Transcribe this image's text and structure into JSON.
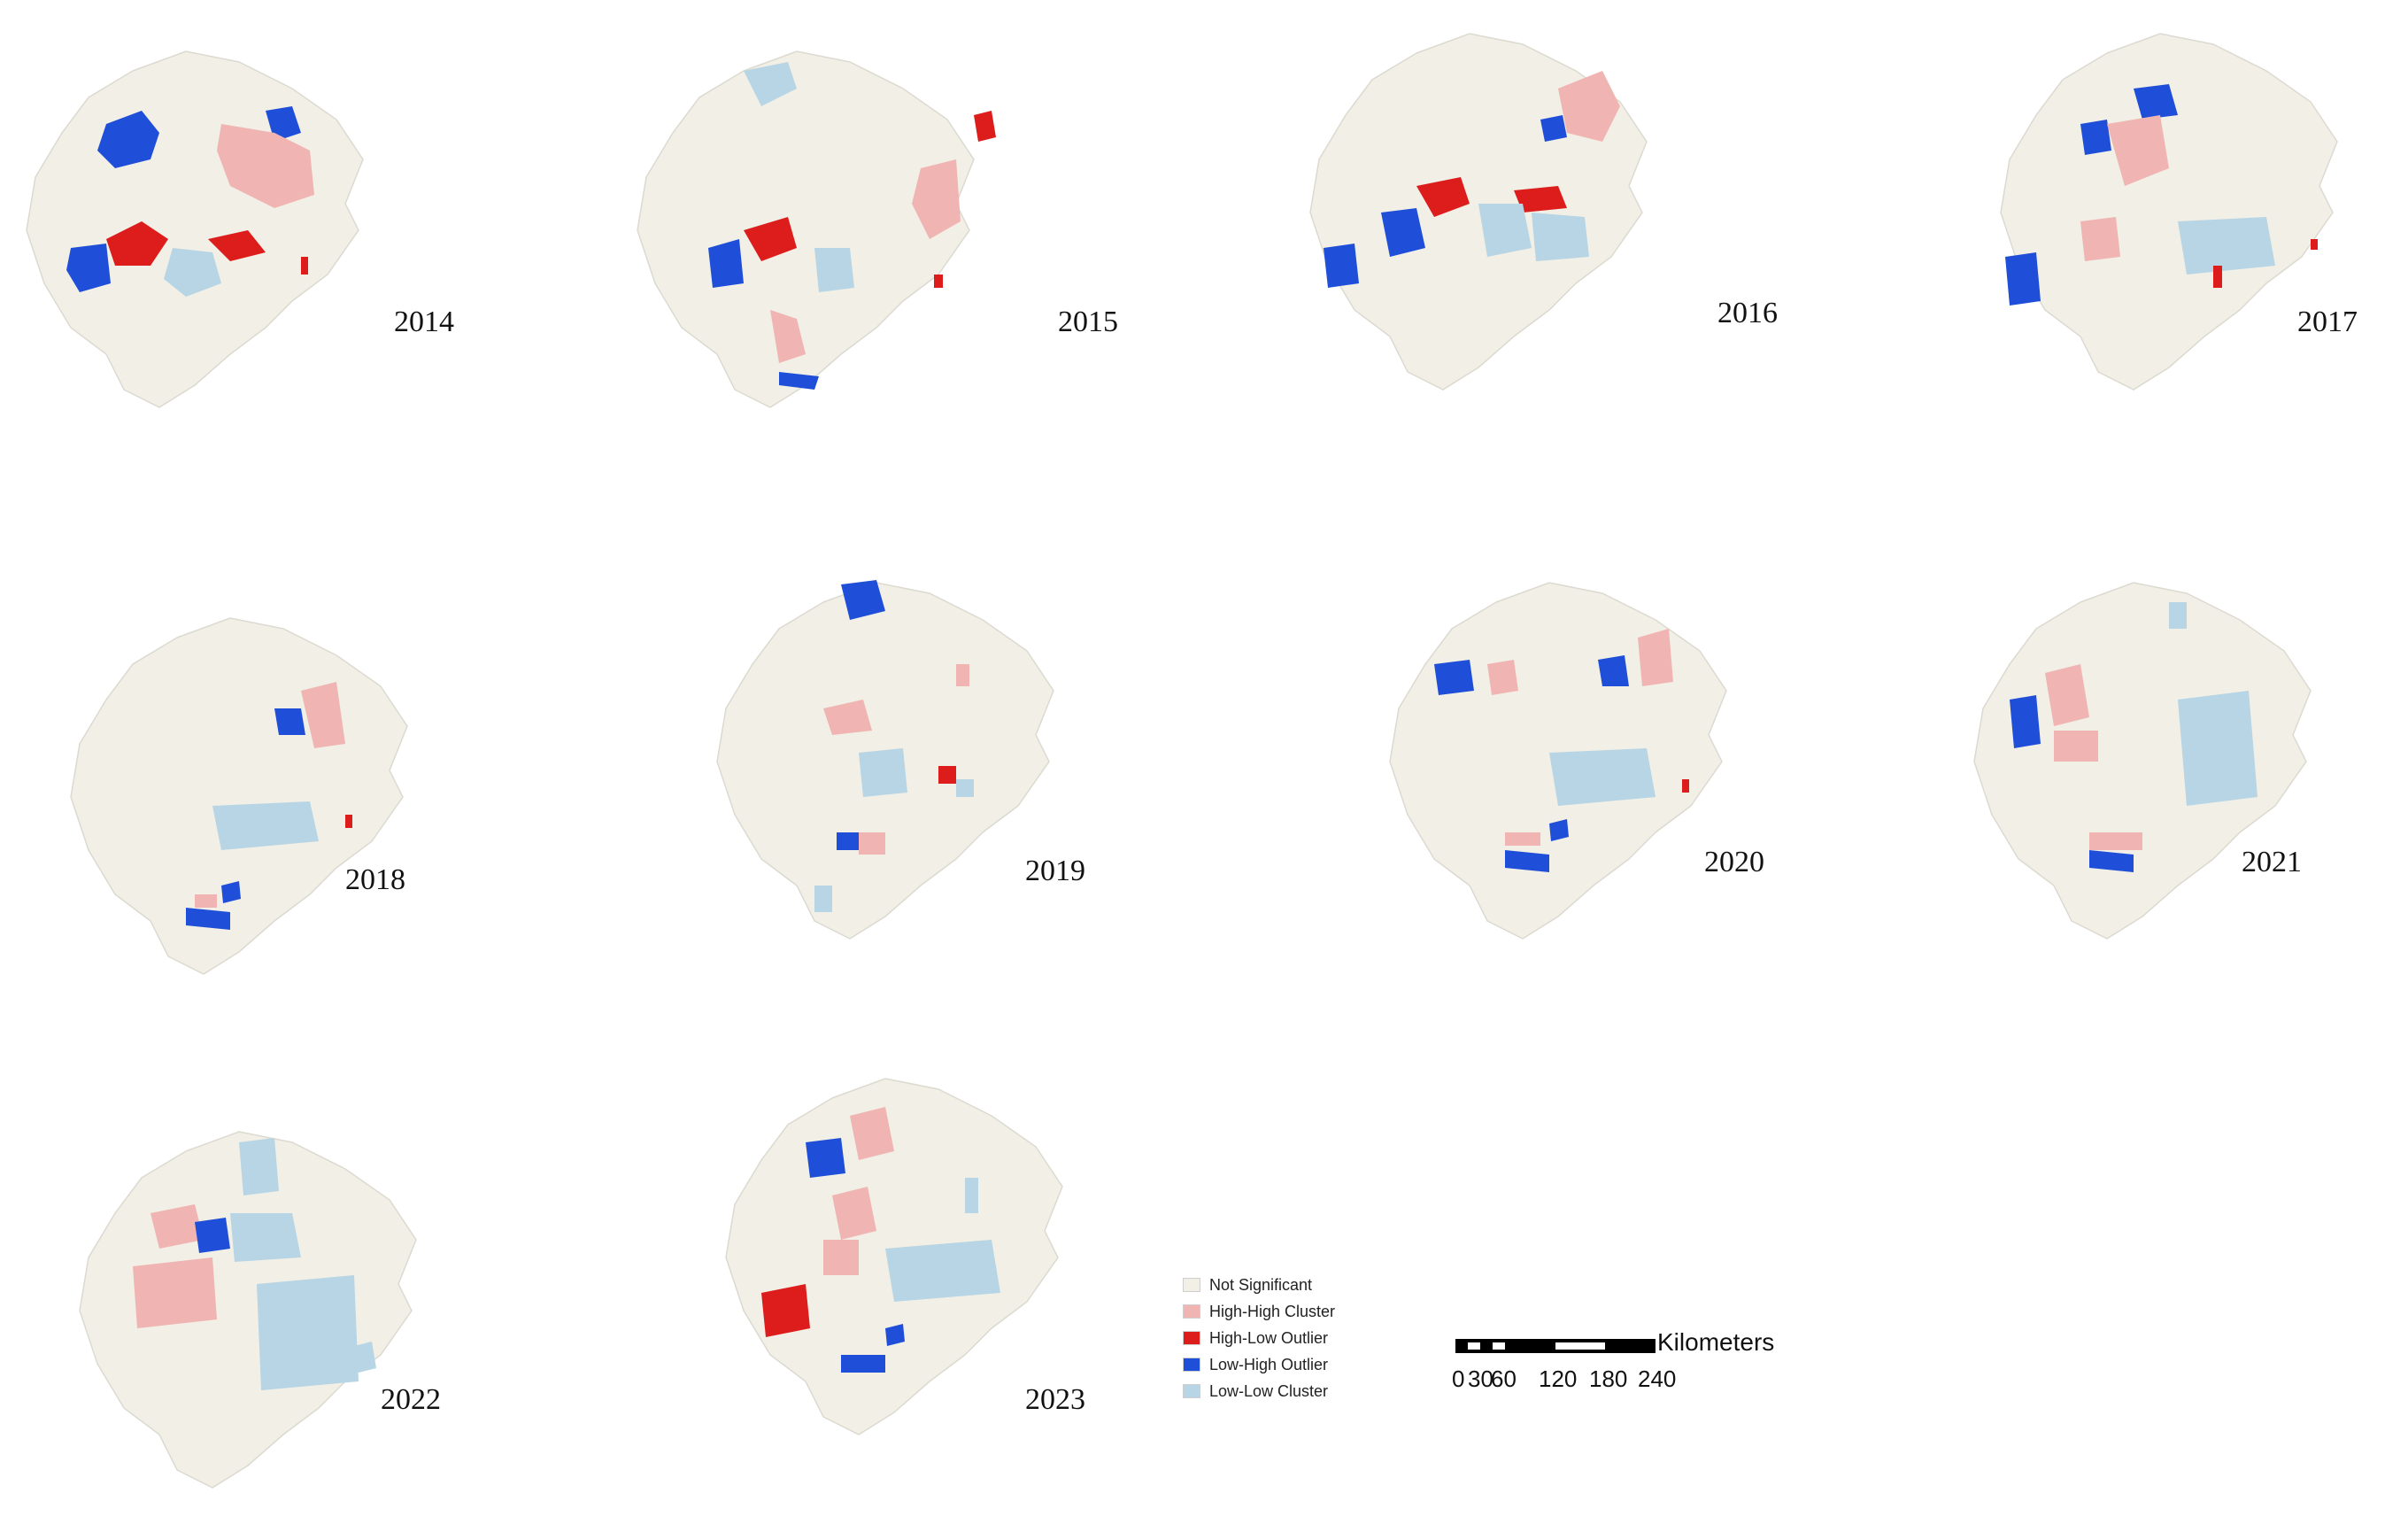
{
  "colors": {
    "not_significant": "#f1efe6",
    "high_high": "#f0b5b2",
    "high_low": "#dd1c1c",
    "low_high": "#1f4fd8",
    "low_low": "#b7d5e4"
  },
  "panels": [
    {
      "year": "2014",
      "key": "p2014"
    },
    {
      "year": "2015",
      "key": "p2015"
    },
    {
      "year": "2016",
      "key": "p2016"
    },
    {
      "year": "2017",
      "key": "p2017"
    },
    {
      "year": "2018",
      "key": "p2018"
    },
    {
      "year": "2019",
      "key": "p2019"
    },
    {
      "year": "2020",
      "key": "p2020"
    },
    {
      "year": "2021",
      "key": "p2021"
    },
    {
      "year": "2022",
      "key": "p2022"
    },
    {
      "year": "2023",
      "key": "p2023"
    }
  ],
  "legend": {
    "items": [
      {
        "label": "Not Significant",
        "color": "#f1efe6"
      },
      {
        "label": "High-High Cluster",
        "color": "#f0b5b2"
      },
      {
        "label": "High-Low Outlier",
        "color": "#dd1c1c"
      },
      {
        "label": "Low-High Outlier",
        "color": "#1f4fd8"
      },
      {
        "label": "Low-Low Cluster",
        "color": "#b7d5e4"
      }
    ]
  },
  "scale_bar": {
    "unit": "Kilometers",
    "ticks": [
      "0",
      "30",
      "60",
      "120",
      "180",
      "240"
    ]
  }
}
